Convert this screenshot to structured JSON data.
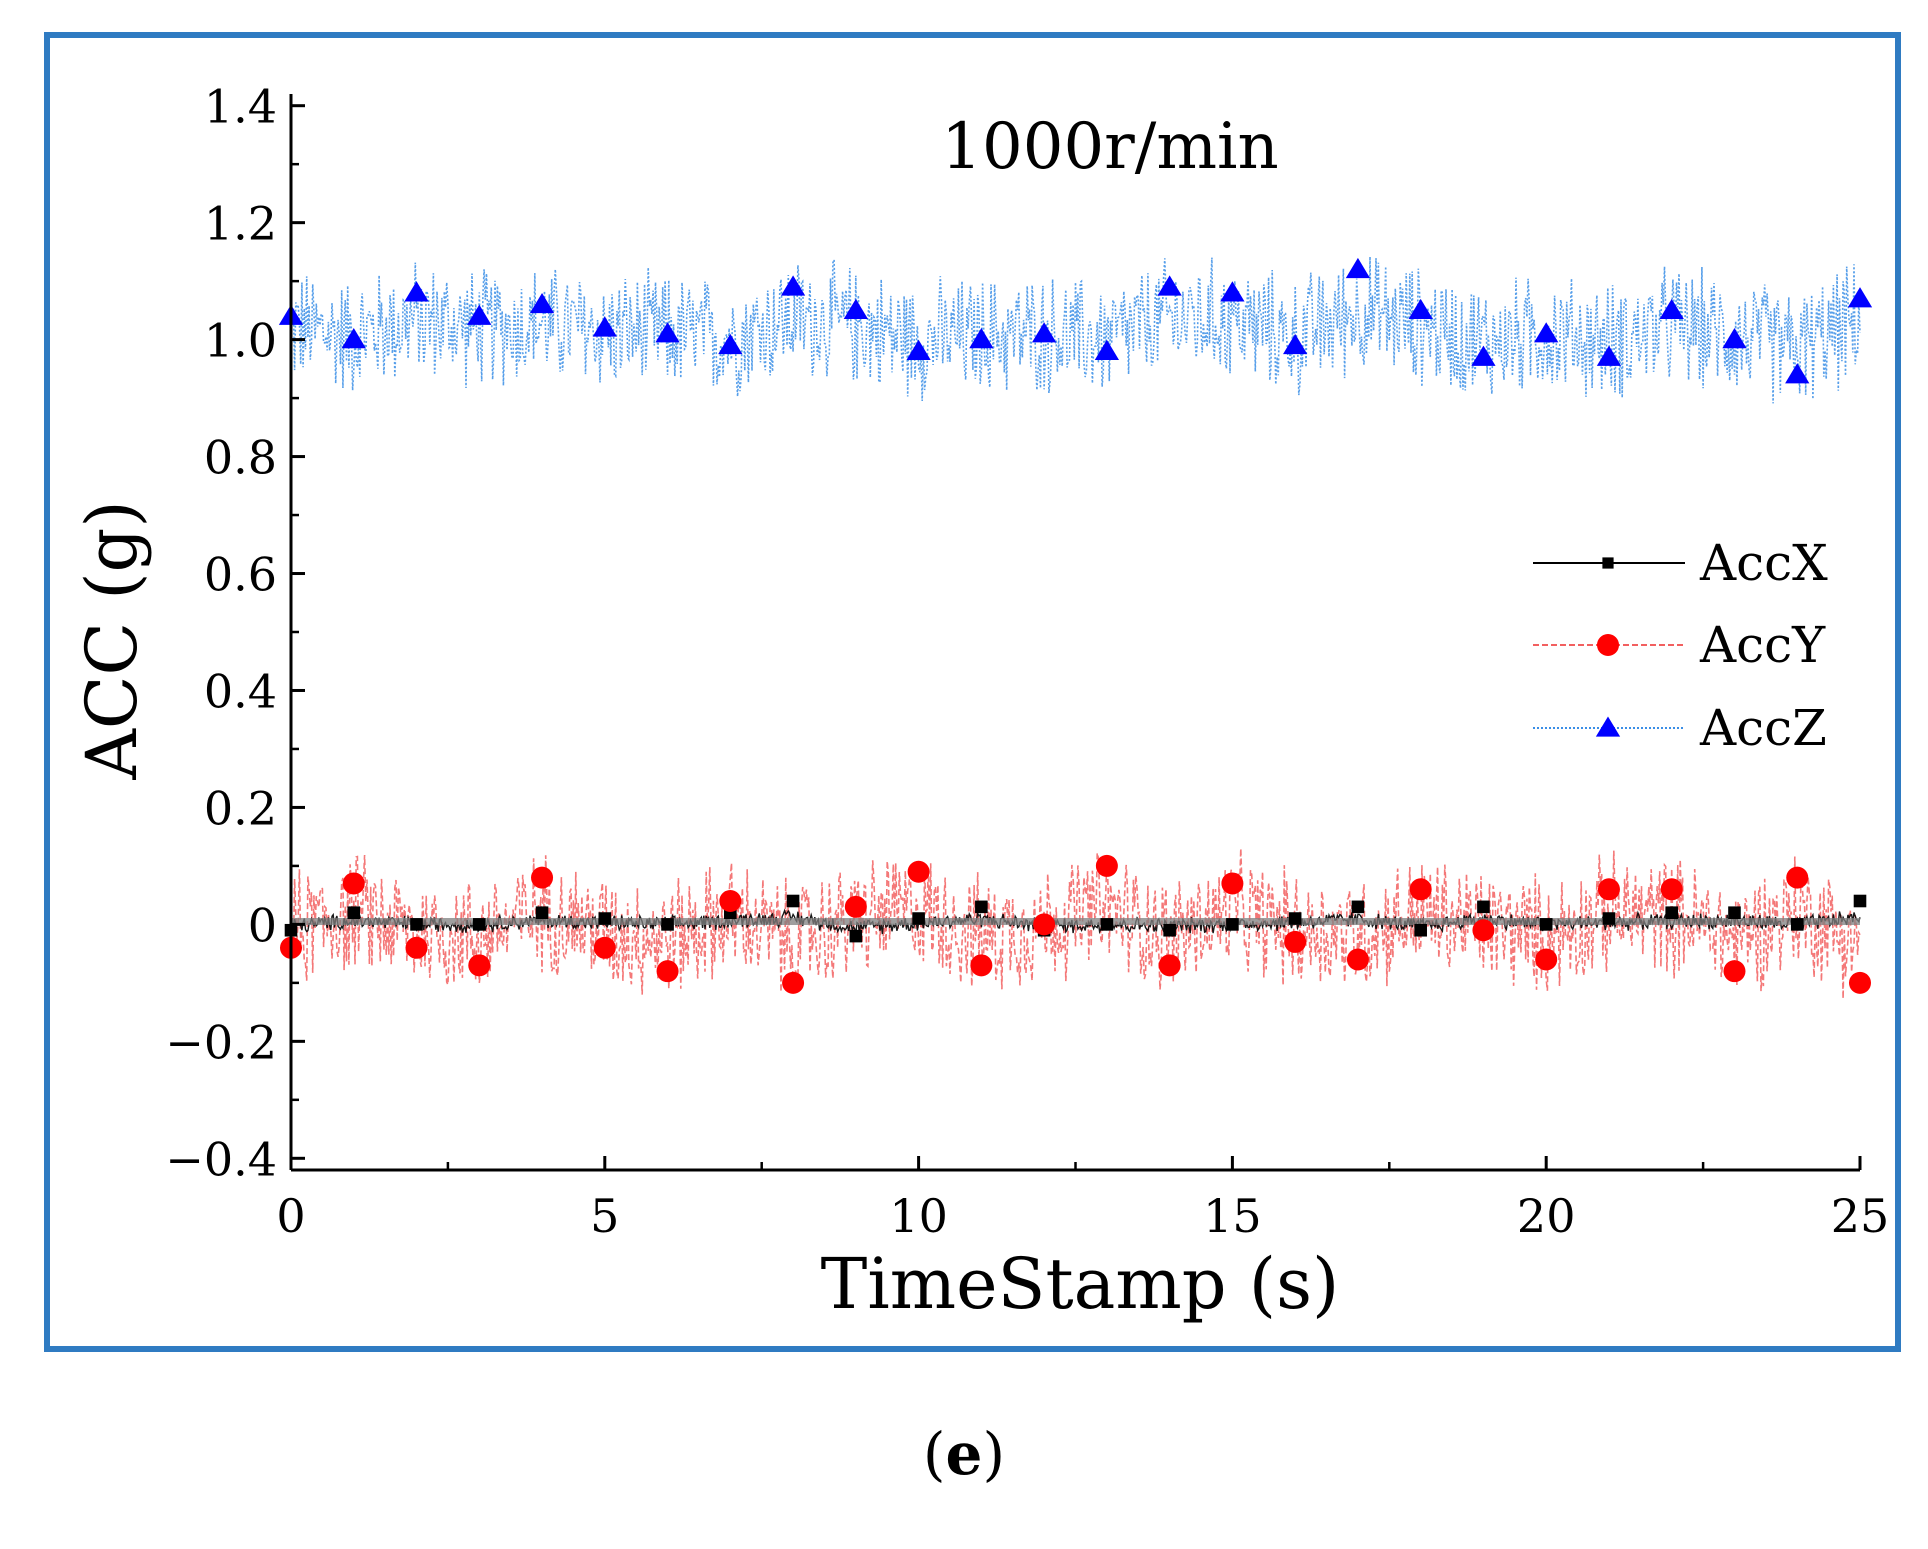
{
  "figure": {
    "panel_label_open": "(",
    "panel_label_letter": "e",
    "panel_label_close": ")"
  },
  "colors": {
    "frame": "#2F7BC2",
    "accx": "#000000",
    "accy": "#FF0000",
    "accy_line": "#F26060",
    "accz_line": "#3A8EE6",
    "accz_marker": "#0000FF",
    "baseline": "#808080"
  },
  "chart_data": {
    "type": "line",
    "title": "1000r/min",
    "xlabel": "TimeStamp (s)",
    "ylabel": "ACC (g)",
    "xlim": [
      0,
      25
    ],
    "ylim": [
      -0.42,
      1.42
    ],
    "x_ticks": [
      0,
      5,
      10,
      15,
      20,
      25
    ],
    "x_tick_labels": [
      "0",
      "5",
      "10",
      "15",
      "20",
      "25"
    ],
    "y_ticks": [
      -0.4,
      -0.2,
      0,
      0.2,
      0.4,
      0.6,
      0.8,
      1.0,
      1.2,
      1.4
    ],
    "y_tick_labels": [
      "−0.4",
      "−0.2",
      "0",
      "0.2",
      "0.4",
      "0.6",
      "0.8",
      "1.0",
      "1.2",
      "1.4"
    ],
    "legend": {
      "position": "right-middle",
      "entries": [
        "AccX",
        "AccY",
        "AccZ"
      ]
    },
    "noise_amplitude": {
      "AccX": 0.012,
      "AccY": 0.09,
      "AccZ": 0.09
    },
    "series": [
      {
        "name": "AccX",
        "marker": "square",
        "line_style": "solid",
        "x": [
          0,
          1,
          2,
          3,
          4,
          5,
          6,
          7,
          8,
          9,
          10,
          11,
          12,
          13,
          14,
          15,
          16,
          17,
          18,
          19,
          20,
          21,
          22,
          23,
          24,
          25
        ],
        "values": [
          -0.01,
          0.02,
          0,
          0,
          0.02,
          0.01,
          0,
          0.02,
          0.04,
          -0.02,
          0.01,
          0.03,
          -0.01,
          0,
          -0.01,
          0,
          0.01,
          0.03,
          -0.01,
          0.03,
          0,
          0.01,
          0.02,
          0.02,
          0,
          0.04
        ]
      },
      {
        "name": "AccY",
        "marker": "circle",
        "line_style": "dashed",
        "x": [
          0,
          1,
          2,
          3,
          4,
          5,
          6,
          7,
          8,
          9,
          10,
          11,
          12,
          13,
          14,
          15,
          16,
          17,
          18,
          19,
          20,
          21,
          22,
          23,
          24,
          25
        ],
        "values": [
          -0.04,
          0.07,
          -0.04,
          -0.07,
          0.08,
          -0.04,
          -0.08,
          0.04,
          -0.1,
          0.03,
          0.09,
          -0.07,
          0,
          0.1,
          -0.07,
          0.07,
          -0.03,
          -0.06,
          0.06,
          -0.01,
          -0.06,
          0.06,
          0.06,
          -0.08,
          0.08,
          -0.1
        ]
      },
      {
        "name": "AccZ",
        "marker": "triangle",
        "line_style": "dotted",
        "x": [
          0,
          1,
          2,
          3,
          4,
          5,
          6,
          7,
          8,
          9,
          10,
          11,
          12,
          13,
          14,
          15,
          16,
          17,
          18,
          19,
          20,
          21,
          22,
          23,
          24,
          25
        ],
        "values": [
          1.04,
          1.0,
          1.08,
          1.04,
          1.06,
          1.02,
          1.01,
          0.99,
          1.09,
          1.05,
          0.98,
          1.0,
          1.01,
          0.98,
          1.09,
          1.08,
          0.99,
          1.12,
          1.05,
          0.97,
          1.01,
          0.97,
          1.05,
          1.0,
          0.94,
          1.07
        ]
      }
    ]
  }
}
